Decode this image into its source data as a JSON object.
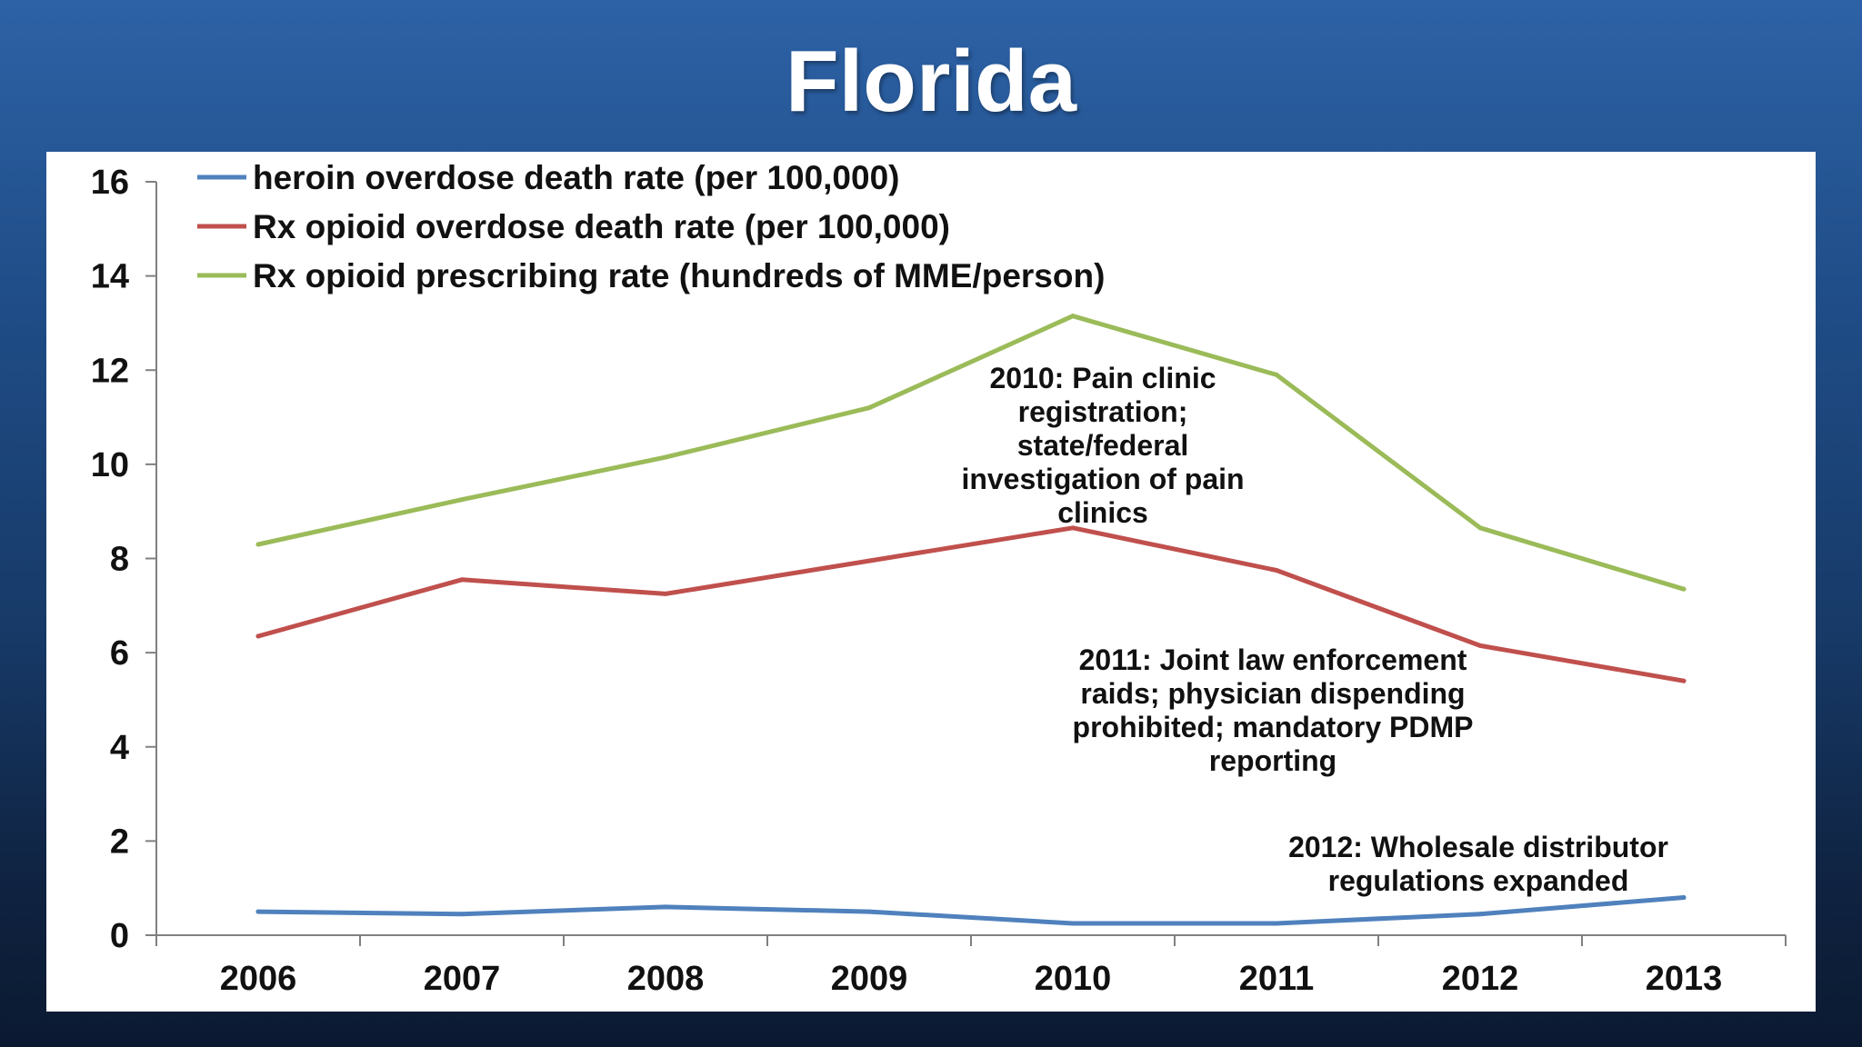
{
  "slide": {
    "title": "Florida"
  },
  "chart_data": {
    "type": "line",
    "title": "",
    "xlabel": "",
    "ylabel": "",
    "categories": [
      "2006",
      "2007",
      "2008",
      "2009",
      "2010",
      "2011",
      "2012",
      "2013"
    ],
    "ylim": [
      0,
      16
    ],
    "yticks": [
      "0",
      "2",
      "4",
      "6",
      "8",
      "10",
      "12",
      "14",
      "16"
    ],
    "grid": false,
    "legend_position": "top-left",
    "series": [
      {
        "name": "heroin overdose death rate (per 100,000)",
        "color": "#4f81bd",
        "values": [
          0.5,
          0.45,
          0.6,
          0.5,
          0.25,
          0.25,
          0.45,
          0.8
        ]
      },
      {
        "name": "Rx opioid overdose death rate (per 100,000)",
        "color": "#c0504d",
        "values": [
          6.35,
          7.55,
          7.25,
          7.95,
          8.65,
          7.75,
          6.15,
          5.4
        ]
      },
      {
        "name": "Rx opioid prescribing rate (hundreds of MME/person)",
        "color": "#9bbb59",
        "values": [
          8.3,
          9.25,
          10.15,
          11.2,
          13.15,
          11.9,
          8.65,
          7.35
        ]
      }
    ],
    "annotations": [
      {
        "lines": [
          "2010: Pain clinic",
          "registration;",
          "state/federal",
          "investigation of pain",
          "clinics"
        ]
      },
      {
        "lines": [
          "2011: Joint law enforcement",
          "raids; physician dispending",
          "prohibited; mandatory PDMP",
          "reporting"
        ]
      },
      {
        "lines": [
          "2012: Wholesale distributor",
          "regulations expanded"
        ]
      }
    ]
  }
}
